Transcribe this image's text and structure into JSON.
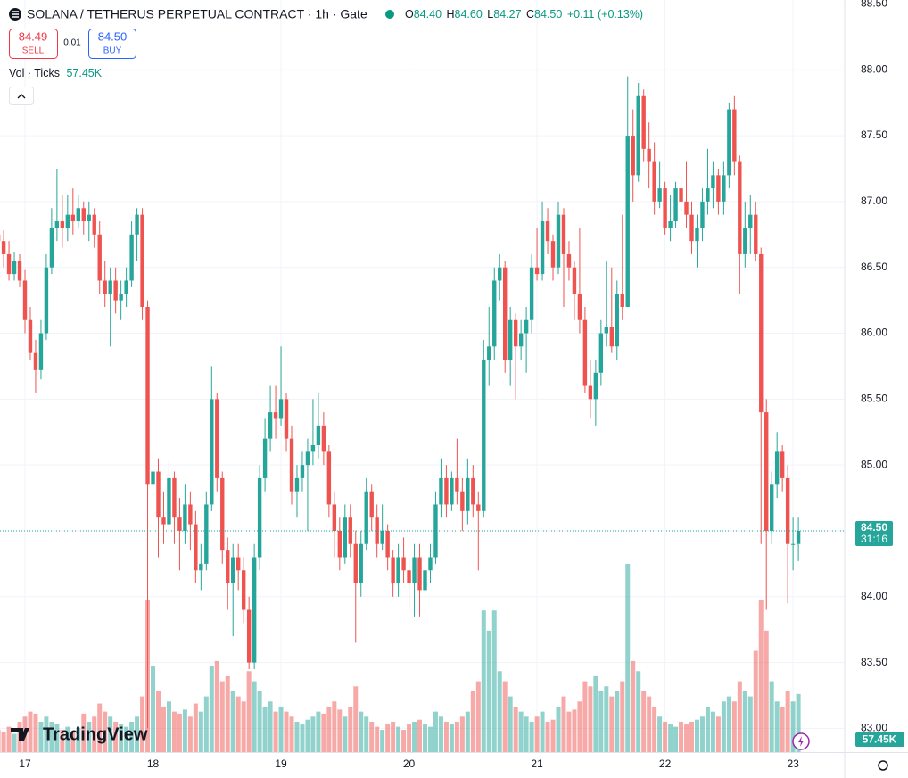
{
  "header": {
    "title": "SOLANA / TETHERUS PERPETUAL CONTRACT · 1h · Gate",
    "o_label": "O",
    "o": "84.40",
    "h_label": "H",
    "h": "84.60",
    "l_label": "L",
    "l": "84.27",
    "c_label": "C",
    "c": "84.50",
    "change": "+0.11 (+0.13%)",
    "sell_price": "84.49",
    "sell": "SELL",
    "spread": "0.01",
    "buy_price": "84.50",
    "buy": "BUY",
    "volume_label": "Vol · Ticks",
    "volume_value": "57.45K"
  },
  "price_tag": {
    "price": "84.50",
    "countdown": "31:16",
    "volume": "57.45K"
  },
  "logo": "TradingView",
  "chart_data": {
    "type": "candlestick",
    "up_color": "#26a69a",
    "down_color": "#ef5350",
    "grid": true,
    "ylim": [
      82.82,
      88.53
    ],
    "yticks": [
      {
        "value": 83,
        "label": "83.00"
      },
      {
        "value": 83.5,
        "label": "83.50"
      },
      {
        "value": 84,
        "label": "84.00"
      },
      {
        "value": 84.5,
        "label": "84.50"
      },
      {
        "value": 85,
        "label": "85.00"
      },
      {
        "value": 85.5,
        "label": "85.50"
      },
      {
        "value": 86,
        "label": "86.00"
      },
      {
        "value": 86.5,
        "label": "86.50"
      },
      {
        "value": 87,
        "label": "87.00"
      },
      {
        "value": 87.5,
        "label": "87.50"
      },
      {
        "value": 88,
        "label": "88.00"
      },
      {
        "value": 88.5,
        "label": "88.50"
      }
    ],
    "categories": [
      null,
      null,
      null,
      null,
      null,
      "17",
      null,
      null,
      null,
      null,
      null,
      null,
      null,
      null,
      null,
      null,
      null,
      null,
      null,
      null,
      null,
      null,
      null,
      null,
      null,
      null,
      null,
      null,
      null,
      "18",
      null,
      null,
      null,
      null,
      null,
      null,
      null,
      null,
      null,
      null,
      null,
      null,
      null,
      null,
      null,
      null,
      null,
      null,
      null,
      null,
      null,
      null,
      null,
      "19",
      null,
      null,
      null,
      null,
      null,
      null,
      null,
      null,
      null,
      null,
      null,
      null,
      null,
      null,
      null,
      null,
      null,
      null,
      null,
      null,
      null,
      null,
      null,
      "20",
      null,
      null,
      null,
      null,
      null,
      null,
      null,
      null,
      null,
      null,
      null,
      null,
      null,
      null,
      null,
      null,
      null,
      null,
      null,
      null,
      null,
      null,
      null,
      "21",
      null,
      null,
      null,
      null,
      null,
      null,
      null,
      null,
      null,
      null,
      null,
      null,
      null,
      null,
      null,
      null,
      null,
      null,
      null,
      null,
      null,
      null,
      null,
      "22",
      null,
      null,
      null,
      null,
      null,
      null,
      null,
      null,
      null,
      null,
      null,
      null,
      null,
      null,
      null,
      null,
      null,
      null,
      null,
      null,
      null,
      null,
      null,
      "23",
      null
    ],
    "candles": [
      [
        86.75,
        86.85,
        86.6,
        86.7,
        22
      ],
      [
        86.7,
        86.78,
        86.5,
        86.6,
        20
      ],
      [
        86.6,
        86.7,
        86.4,
        86.45,
        25
      ],
      [
        86.45,
        86.62,
        86.4,
        86.55,
        18
      ],
      [
        86.55,
        86.6,
        86.35,
        86.4,
        30
      ],
      [
        86.4,
        86.48,
        86.0,
        86.1,
        35
      ],
      [
        86.1,
        86.2,
        85.8,
        85.85,
        40
      ],
      [
        85.85,
        85.95,
        85.55,
        85.72,
        38
      ],
      [
        85.72,
        86.1,
        85.65,
        86.0,
        30
      ],
      [
        86.0,
        86.6,
        85.95,
        86.5,
        35
      ],
      [
        86.5,
        86.95,
        86.45,
        86.8,
        30
      ],
      [
        86.8,
        87.25,
        86.7,
        86.85,
        28
      ],
      [
        86.85,
        87.05,
        86.65,
        86.8,
        22
      ],
      [
        86.8,
        87.05,
        86.7,
        86.9,
        25
      ],
      [
        86.9,
        87.1,
        86.75,
        86.85,
        20
      ],
      [
        86.85,
        87.05,
        86.8,
        86.95,
        24
      ],
      [
        86.95,
        87.0,
        86.75,
        86.85,
        38
      ],
      [
        86.85,
        87.0,
        86.7,
        86.9,
        30
      ],
      [
        86.9,
        86.95,
        86.65,
        86.75,
        35
      ],
      [
        86.75,
        86.85,
        86.3,
        86.4,
        48
      ],
      [
        86.4,
        86.55,
        86.2,
        86.3,
        40
      ],
      [
        86.3,
        86.5,
        85.9,
        86.4,
        35
      ],
      [
        86.4,
        86.5,
        86.15,
        86.25,
        30
      ],
      [
        86.25,
        86.4,
        86.1,
        86.3,
        28
      ],
      [
        86.3,
        86.5,
        86.2,
        86.4,
        25
      ],
      [
        86.4,
        86.85,
        86.35,
        86.75,
        30
      ],
      [
        86.75,
        86.95,
        86.55,
        86.9,
        35
      ],
      [
        86.9,
        86.95,
        86.1,
        86.2,
        55
      ],
      [
        86.2,
        86.25,
        83.0,
        84.85,
        150
      ],
      [
        84.85,
        85.0,
        84.2,
        84.95,
        85
      ],
      [
        84.95,
        85.05,
        84.3,
        84.6,
        60
      ],
      [
        84.6,
        84.8,
        84.4,
        84.55,
        45
      ],
      [
        84.55,
        85.05,
        84.45,
        84.9,
        50
      ],
      [
        84.9,
        84.95,
        84.4,
        84.6,
        40
      ],
      [
        84.6,
        84.75,
        84.2,
        84.5,
        38
      ],
      [
        84.5,
        84.85,
        84.4,
        84.7,
        42
      ],
      [
        84.7,
        84.8,
        84.35,
        84.55,
        35
      ],
      [
        84.55,
        84.65,
        84.1,
        84.2,
        48
      ],
      [
        84.2,
        84.4,
        84.05,
        84.25,
        40
      ],
      [
        84.25,
        84.8,
        84.2,
        84.7,
        55
      ],
      [
        84.7,
        85.75,
        84.65,
        85.5,
        85
      ],
      [
        85.5,
        85.55,
        84.8,
        84.9,
        90
      ],
      [
        84.9,
        84.95,
        84.25,
        84.35,
        70
      ],
      [
        84.35,
        84.45,
        83.9,
        84.1,
        75
      ],
      [
        84.1,
        84.4,
        83.7,
        84.3,
        60
      ],
      [
        84.3,
        84.4,
        84.05,
        84.2,
        55
      ],
      [
        84.2,
        84.3,
        83.8,
        83.9,
        50
      ],
      [
        83.9,
        84.0,
        83.45,
        83.5,
        80
      ],
      [
        83.5,
        84.4,
        83.45,
        84.3,
        70
      ],
      [
        84.3,
        85.0,
        84.2,
        84.9,
        60
      ],
      [
        84.9,
        85.35,
        84.8,
        85.2,
        45
      ],
      [
        85.2,
        85.6,
        85.1,
        85.4,
        50
      ],
      [
        85.4,
        85.6,
        85.2,
        85.35,
        40
      ],
      [
        85.35,
        85.9,
        85.3,
        85.5,
        45
      ],
      [
        85.5,
        85.55,
        85.1,
        85.2,
        40
      ],
      [
        85.2,
        85.3,
        84.7,
        84.8,
        35
      ],
      [
        84.8,
        85.0,
        84.6,
        84.9,
        30
      ],
      [
        84.9,
        85.1,
        84.8,
        85.0,
        28
      ],
      [
        85.0,
        85.2,
        84.5,
        85.1,
        32
      ],
      [
        85.1,
        85.5,
        85.0,
        85.15,
        35
      ],
      [
        85.15,
        85.55,
        85.05,
        85.3,
        40
      ],
      [
        85.3,
        85.4,
        85.0,
        85.1,
        38
      ],
      [
        85.1,
        85.15,
        84.6,
        84.7,
        45
      ],
      [
        84.7,
        84.8,
        84.3,
        84.5,
        50
      ],
      [
        84.5,
        84.6,
        84.2,
        84.3,
        42
      ],
      [
        84.3,
        84.7,
        84.25,
        84.6,
        35
      ],
      [
        84.6,
        84.7,
        84.3,
        84.4,
        45
      ],
      [
        84.4,
        84.5,
        83.65,
        84.1,
        65
      ],
      [
        84.1,
        84.5,
        84.0,
        84.4,
        40
      ],
      [
        84.4,
        84.9,
        84.35,
        84.8,
        35
      ],
      [
        84.8,
        84.85,
        84.5,
        84.6,
        30
      ],
      [
        84.6,
        84.7,
        84.3,
        84.4,
        25
      ],
      [
        84.4,
        84.7,
        84.35,
        84.5,
        22
      ],
      [
        84.5,
        84.55,
        84.2,
        84.3,
        28
      ],
      [
        84.3,
        84.35,
        84.0,
        84.1,
        30
      ],
      [
        84.1,
        84.4,
        84.0,
        84.3,
        25
      ],
      [
        84.3,
        84.45,
        84.1,
        84.2,
        22
      ],
      [
        84.2,
        84.3,
        83.9,
        84.1,
        28
      ],
      [
        84.1,
        84.4,
        83.85,
        84.3,
        30
      ],
      [
        84.3,
        84.4,
        83.85,
        84.05,
        32
      ],
      [
        84.05,
        84.25,
        83.9,
        84.2,
        28
      ],
      [
        84.2,
        84.4,
        84.1,
        84.3,
        25
      ],
      [
        84.3,
        84.8,
        84.25,
        84.7,
        40
      ],
      [
        84.7,
        85.05,
        84.6,
        84.9,
        35
      ],
      [
        84.9,
        85.0,
        84.6,
        84.7,
        30
      ],
      [
        84.7,
        84.95,
        84.65,
        84.9,
        28
      ],
      [
        84.9,
        85.2,
        84.7,
        84.8,
        30
      ],
      [
        84.8,
        84.9,
        84.5,
        84.65,
        35
      ],
      [
        84.65,
        85.05,
        84.55,
        84.9,
        40
      ],
      [
        84.9,
        85.0,
        84.6,
        84.7,
        60
      ],
      [
        84.7,
        84.8,
        84.2,
        84.65,
        70
      ],
      [
        84.65,
        85.95,
        84.6,
        85.8,
        140
      ],
      [
        85.8,
        86.2,
        85.6,
        85.9,
        120
      ],
      [
        85.9,
        86.5,
        85.8,
        86.4,
        140
      ],
      [
        86.4,
        86.6,
        86.25,
        86.5,
        80
      ],
      [
        86.5,
        86.55,
        85.7,
        85.8,
        70
      ],
      [
        85.8,
        86.2,
        85.6,
        86.1,
        55
      ],
      [
        86.1,
        86.15,
        85.5,
        85.9,
        45
      ],
      [
        85.9,
        86.1,
        85.8,
        86.0,
        40
      ],
      [
        86.0,
        86.2,
        85.7,
        86.1,
        35
      ],
      [
        86.1,
        86.6,
        86.0,
        86.5,
        30
      ],
      [
        86.5,
        86.8,
        86.4,
        86.45,
        35
      ],
      [
        86.45,
        87.0,
        86.4,
        86.85,
        40
      ],
      [
        86.85,
        86.95,
        86.6,
        86.7,
        30
      ],
      [
        86.7,
        86.75,
        86.4,
        86.5,
        32
      ],
      [
        86.5,
        87.0,
        86.45,
        86.9,
        45
      ],
      [
        86.9,
        86.95,
        86.2,
        86.6,
        55
      ],
      [
        86.6,
        86.7,
        86.4,
        86.5,
        40
      ],
      [
        86.5,
        86.55,
        86.1,
        86.3,
        42
      ],
      [
        86.3,
        86.8,
        86.0,
        86.1,
        50
      ],
      [
        86.1,
        86.2,
        85.55,
        85.6,
        70
      ],
      [
        85.6,
        85.8,
        85.35,
        85.5,
        65
      ],
      [
        85.5,
        85.8,
        85.3,
        85.7,
        75
      ],
      [
        85.7,
        86.1,
        85.6,
        86.0,
        60
      ],
      [
        86.0,
        86.55,
        85.9,
        86.05,
        65
      ],
      [
        86.05,
        86.5,
        85.85,
        85.9,
        55
      ],
      [
        85.9,
        86.4,
        85.8,
        86.3,
        60
      ],
      [
        86.3,
        86.9,
        86.1,
        86.2,
        70
      ],
      [
        86.2,
        87.95,
        86.2,
        87.5,
        186
      ],
      [
        87.5,
        87.7,
        87.0,
        87.2,
        90
      ],
      [
        87.2,
        87.9,
        87.15,
        87.8,
        80
      ],
      [
        87.8,
        87.85,
        87.3,
        87.4,
        60
      ],
      [
        87.4,
        87.6,
        87.1,
        87.3,
        55
      ],
      [
        87.3,
        87.45,
        86.9,
        87.0,
        45
      ],
      [
        87.0,
        87.3,
        86.95,
        87.1,
        35
      ],
      [
        87.1,
        87.15,
        86.75,
        86.8,
        30
      ],
      [
        86.8,
        87.05,
        86.7,
        86.85,
        28
      ],
      [
        86.85,
        87.15,
        86.8,
        87.1,
        25
      ],
      [
        87.1,
        87.2,
        86.9,
        87.0,
        30
      ],
      [
        87.0,
        87.3,
        86.8,
        86.9,
        28
      ],
      [
        86.9,
        87.0,
        86.6,
        86.7,
        30
      ],
      [
        86.7,
        86.9,
        86.5,
        86.8,
        32
      ],
      [
        86.8,
        87.1,
        86.7,
        87.0,
        35
      ],
      [
        87.0,
        87.4,
        86.9,
        87.1,
        45
      ],
      [
        87.1,
        87.3,
        86.95,
        87.2,
        40
      ],
      [
        87.2,
        87.25,
        86.9,
        87.0,
        35
      ],
      [
        87.0,
        87.3,
        86.9,
        87.2,
        50
      ],
      [
        87.2,
        87.75,
        87.1,
        87.7,
        55
      ],
      [
        87.7,
        87.8,
        87.2,
        87.3,
        50
      ],
      [
        87.3,
        87.35,
        86.3,
        86.6,
        70
      ],
      [
        86.6,
        87.0,
        86.5,
        86.8,
        60
      ],
      [
        86.8,
        87.05,
        86.6,
        86.9,
        55
      ],
      [
        86.9,
        87.0,
        86.55,
        86.6,
        100
      ],
      [
        86.6,
        86.65,
        84.4,
        85.4,
        150
      ],
      [
        85.4,
        85.5,
        83.9,
        84.5,
        120
      ],
      [
        84.5,
        84.95,
        84.4,
        84.85,
        70
      ],
      [
        84.85,
        85.25,
        84.75,
        85.1,
        50
      ],
      [
        85.1,
        85.15,
        84.8,
        84.9,
        45
      ],
      [
        84.9,
        85.0,
        83.95,
        84.4,
        60
      ],
      [
        84.4,
        84.6,
        84.2,
        84.4,
        50
      ],
      [
        84.4,
        84.6,
        84.27,
        84.5,
        57.45
      ]
    ]
  }
}
